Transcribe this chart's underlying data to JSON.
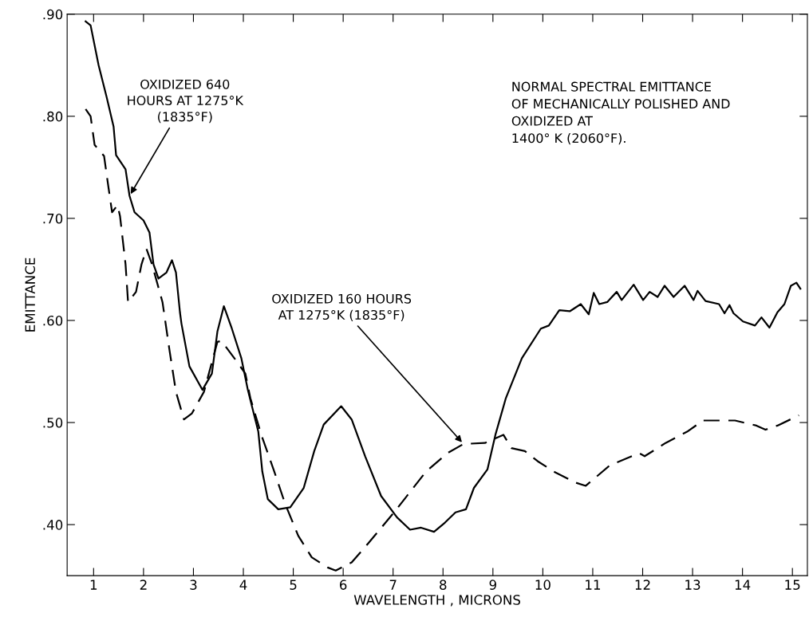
{
  "chart_data": {
    "type": "line",
    "title": "NORMAL SPECTRAL EMITTANCE\nOF MECHANICALLY POLISHED AND\nOXIDIZED AT\n1400° K (2060°F).",
    "xlabel": "WAVELENGTH , MICRONS",
    "ylabel": "EMITTANCE",
    "xlim": [
      0.47,
      15.3
    ],
    "ylim": [
      0.35,
      0.9
    ],
    "xticks": [
      1,
      2,
      3,
      4,
      5,
      6,
      7,
      8,
      9,
      10,
      11,
      12,
      13,
      14,
      15
    ],
    "yticks": [
      {
        "value": 0.4,
        "label": ".40"
      },
      {
        "value": 0.5,
        "label": ".50"
      },
      {
        "value": 0.6,
        "label": ".60"
      },
      {
        "value": 0.7,
        "label": ".70"
      },
      {
        "value": 0.8,
        "label": ".80"
      },
      {
        "value": 0.9,
        "label": ".90"
      }
    ],
    "grid": false,
    "legend": false,
    "series": [
      {
        "color": "#000000",
        "line_style": "solid",
        "x": [
          0.84,
          0.94,
          1.1,
          1.26,
          1.4,
          1.45,
          1.64,
          1.72,
          1.82,
          2.0,
          2.12,
          2.2,
          2.3,
          2.46,
          2.57,
          2.65,
          2.73,
          2.76,
          2.92,
          3.18,
          3.37,
          3.48,
          3.61,
          3.77,
          3.96,
          4.09,
          4.3,
          4.38,
          4.49,
          4.7,
          4.94,
          5.21,
          5.42,
          5.61,
          5.96,
          6.17,
          6.44,
          6.76,
          7.08,
          7.34,
          7.56,
          7.82,
          8.04,
          8.25,
          8.46,
          8.62,
          8.89,
          9.05,
          9.26,
          9.58,
          9.96,
          10.12,
          10.33,
          10.54,
          10.76,
          10.92,
          11.02,
          11.13,
          11.29,
          11.48,
          11.58,
          11.82,
          12.01,
          12.14,
          12.3,
          12.44,
          12.62,
          12.84,
          13.02,
          13.1,
          13.26,
          13.53,
          13.64,
          13.74,
          13.82,
          14.01,
          14.25,
          14.38,
          14.54,
          14.7,
          14.84,
          14.97,
          15.08,
          15.16
        ],
        "values": [
          0.893,
          0.889,
          0.85,
          0.819,
          0.79,
          0.762,
          0.748,
          0.722,
          0.706,
          0.698,
          0.686,
          0.655,
          0.641,
          0.647,
          0.659,
          0.647,
          0.608,
          0.597,
          0.555,
          0.532,
          0.548,
          0.589,
          0.614,
          0.592,
          0.563,
          0.532,
          0.491,
          0.452,
          0.425,
          0.415,
          0.417,
          0.436,
          0.472,
          0.498,
          0.516,
          0.503,
          0.467,
          0.428,
          0.407,
          0.395,
          0.397,
          0.393,
          0.402,
          0.412,
          0.415,
          0.436,
          0.454,
          0.488,
          0.524,
          0.563,
          0.592,
          0.595,
          0.61,
          0.609,
          0.616,
          0.606,
          0.627,
          0.616,
          0.618,
          0.628,
          0.62,
          0.635,
          0.62,
          0.628,
          0.623,
          0.634,
          0.623,
          0.634,
          0.62,
          0.629,
          0.619,
          0.616,
          0.607,
          0.615,
          0.607,
          0.599,
          0.595,
          0.603,
          0.593,
          0.608,
          0.616,
          0.634,
          0.637,
          0.631
        ]
      },
      {
        "color": "#000000",
        "line_style": "dashed",
        "x": [
          0.84,
          0.94,
          1.02,
          1.21,
          1.29,
          1.37,
          1.48,
          1.53,
          1.64,
          1.69,
          1.85,
          1.96,
          2.06,
          2.17,
          2.38,
          2.52,
          2.65,
          2.81,
          2.97,
          3.21,
          3.48,
          3.56,
          3.82,
          4.04,
          4.14,
          4.36,
          4.62,
          4.84,
          5.1,
          5.37,
          5.69,
          5.85,
          6.17,
          6.49,
          7.02,
          7.66,
          8.09,
          8.41,
          8.84,
          9.21,
          9.37,
          9.64,
          9.9,
          10.22,
          10.54,
          10.6,
          10.86,
          11.34,
          11.93,
          12.04,
          12.46,
          12.89,
          13.21,
          13.85,
          14.28,
          14.46,
          14.7,
          15.13
        ],
        "values": [
          0.807,
          0.8,
          0.772,
          0.761,
          0.733,
          0.706,
          0.713,
          0.702,
          0.655,
          0.618,
          0.628,
          0.655,
          0.67,
          0.655,
          0.618,
          0.571,
          0.53,
          0.503,
          0.509,
          0.53,
          0.579,
          0.58,
          0.563,
          0.548,
          0.524,
          0.488,
          0.452,
          0.42,
          0.389,
          0.368,
          0.358,
          0.355,
          0.363,
          0.381,
          0.412,
          0.452,
          0.47,
          0.479,
          0.48,
          0.488,
          0.475,
          0.472,
          0.462,
          0.452,
          0.444,
          0.442,
          0.438,
          0.458,
          0.47,
          0.467,
          0.48,
          0.491,
          0.502,
          0.502,
          0.497,
          0.493,
          0.497,
          0.507
        ]
      }
    ],
    "annotations": [
      {
        "text": "OXIDIZED 640\nHOURS AT 1275°K\n(1835°F)",
        "x": 1.72,
        "y": 0.722
      },
      {
        "text": "OXIDIZED 160 HOURS\nAT 1275°K (1835°F)",
        "x": 8.41,
        "y": 0.479
      }
    ]
  }
}
